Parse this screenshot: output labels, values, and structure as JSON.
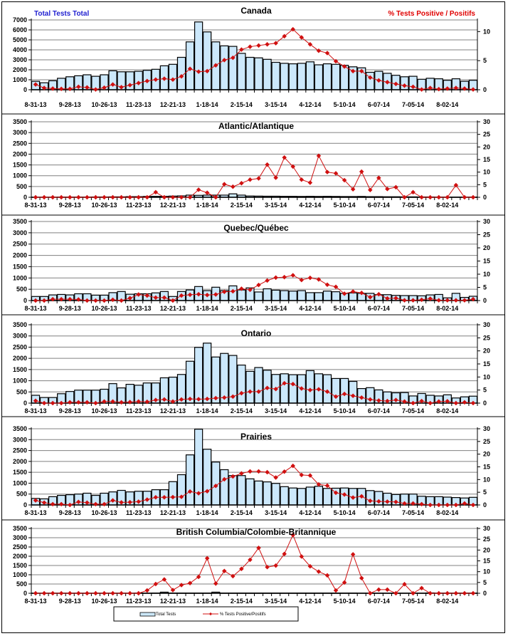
{
  "header": {
    "left_label": "Total Tests Total",
    "right_label": "% Tests Positive / Positifs"
  },
  "legend": {
    "bar_label": "Total Tests",
    "line_label": "% Tests Positive/Positifs",
    "placement": "bottom-center"
  },
  "colors": {
    "bar_fill": "#cce8fb",
    "bar_stroke": "#000000",
    "line": "#d01010",
    "grid": "#808080"
  },
  "chart_data": [
    {
      "type": "bar+line",
      "title": "Canada",
      "x_tick_labels": [
        "8-31-13",
        "9-28-13",
        "10-26-13",
        "11-23-13",
        "12-21-13",
        "1-18-14",
        "2-15-14",
        "3-15-14",
        "4-12-14",
        "5-10-14",
        "6-07-14",
        "7-05-14",
        "8-02-14"
      ],
      "y_left_ticks": [
        "0",
        "1000",
        "2000",
        "3000",
        "4000",
        "5000",
        "6000",
        "7000"
      ],
      "y_left_lim": [
        0,
        7000
      ],
      "y_right_ticks": [
        "0",
        "5",
        "10"
      ],
      "y_right_lim": [
        0,
        12
      ],
      "series": [
        {
          "name": "Total Tests",
          "axis": "left",
          "kind": "bar",
          "values": [
            850,
            700,
            900,
            1150,
            1300,
            1400,
            1500,
            1350,
            1500,
            1900,
            1800,
            1800,
            1850,
            1950,
            2050,
            2400,
            2550,
            3250,
            4800,
            6800,
            5800,
            4800,
            4400,
            4350,
            3650,
            3250,
            3200,
            3050,
            2750,
            2650,
            2600,
            2650,
            2800,
            2500,
            2600,
            2550,
            2450,
            2300,
            2200,
            1750,
            1850,
            1650,
            1450,
            1300,
            1350,
            1050,
            1150,
            1100,
            950,
            1100,
            850,
            950
          ]
        },
        {
          "name": "% Tests Positive/Positifs",
          "axis": "right",
          "kind": "line",
          "values": [
            0.9,
            0.3,
            0.2,
            0.15,
            0.15,
            0.5,
            0.4,
            0.05,
            0.35,
            0.9,
            0.45,
            0.8,
            1.15,
            1.5,
            1.75,
            1.9,
            1.75,
            2.3,
            3.6,
            3.1,
            3.2,
            4.2,
            5.1,
            5.5,
            6.9,
            7.4,
            7.6,
            7.8,
            8.0,
            9.2,
            10.4,
            9.0,
            7.8,
            6.7,
            6.3,
            4.9,
            4.0,
            3.2,
            3.2,
            2.1,
            1.6,
            1.3,
            1.0,
            0.7,
            0.5,
            0.05,
            0.3,
            0.1,
            0.2,
            0.3,
            0.2,
            0.05
          ]
        }
      ]
    },
    {
      "type": "bar+line",
      "title": "Atlantic/Atlantique",
      "x_tick_labels": [
        "8-31-13",
        "9-28-13",
        "10-26-13",
        "11-23-13",
        "12-21-13",
        "1-18-14",
        "2-15-14",
        "3-15-14",
        "4-12-14",
        "5-10-14",
        "6-07-14",
        "7-05-14",
        "8-02-14"
      ],
      "y_left_ticks": [
        "0",
        "500",
        "1000",
        "1500",
        "2000",
        "2500",
        "3000",
        "3500"
      ],
      "y_left_lim": [
        0,
        3500
      ],
      "y_right_ticks": [
        "0",
        "5",
        "10",
        "15",
        "20",
        "25",
        "30"
      ],
      "y_right_lim": [
        0,
        30
      ],
      "series": [
        {
          "name": "Total Tests",
          "axis": "left",
          "kind": "bar",
          "values": [
            5,
            5,
            5,
            10,
            10,
            10,
            10,
            15,
            15,
            20,
            20,
            30,
            30,
            40,
            45,
            45,
            55,
            65,
            100,
            90,
            100,
            100,
            100,
            160,
            100,
            60,
            55,
            50,
            50,
            45,
            45,
            40,
            45,
            40,
            45,
            40,
            35,
            35,
            40,
            30,
            30,
            25,
            25,
            20,
            20,
            15,
            15,
            10,
            10,
            10,
            10,
            10
          ]
        },
        {
          "name": "% Tests Positive/Positifs",
          "axis": "right",
          "kind": "line",
          "values": [
            0,
            0,
            0,
            0,
            0,
            0,
            0,
            0,
            0,
            0,
            0,
            0,
            0,
            0,
            2,
            0,
            0,
            0,
            0,
            3,
            1.8,
            0,
            5.2,
            4.2,
            5.6,
            7,
            7.5,
            13,
            7.8,
            15.8,
            12.2,
            7,
            5.8,
            16.5,
            10,
            9.5,
            6.8,
            3.2,
            10.2,
            2.9,
            7.7,
            3.3,
            4,
            0,
            2,
            0,
            0,
            0,
            0,
            4.8,
            0,
            0
          ]
        }
      ]
    },
    {
      "type": "bar+line",
      "title": "Quebec/Québec",
      "x_tick_labels": [
        "8-31-13",
        "9-28-13",
        "10-26-13",
        "11-23-13",
        "12-21-13",
        "1-18-14",
        "2-15-14",
        "3-15-14",
        "4-12-14",
        "5-10-14",
        "6-07-14",
        "7-05-14",
        "8-02-14"
      ],
      "y_left_ticks": [
        "0",
        "500",
        "1000",
        "1500",
        "2000",
        "2500",
        "3000",
        "3500"
      ],
      "y_left_lim": [
        0,
        3500
      ],
      "y_right_ticks": [
        "0",
        "5",
        "10",
        "15",
        "20",
        "25",
        "30"
      ],
      "y_right_lim": [
        0,
        30
      ],
      "series": [
        {
          "name": "Total Tests",
          "axis": "left",
          "kind": "bar",
          "values": [
            180,
            180,
            250,
            270,
            250,
            300,
            300,
            240,
            240,
            350,
            400,
            280,
            300,
            300,
            340,
            400,
            180,
            400,
            470,
            620,
            440,
            590,
            440,
            650,
            470,
            560,
            380,
            520,
            460,
            440,
            420,
            440,
            350,
            350,
            420,
            390,
            320,
            340,
            320,
            320,
            260,
            260,
            230,
            220,
            220,
            210,
            250,
            270,
            120,
            320,
            140,
            190
          ]
        },
        {
          "name": "% Tests Positive/Positifs",
          "axis": "right",
          "kind": "line",
          "values": [
            0,
            0,
            0.5,
            0.5,
            0.5,
            0.4,
            0,
            0,
            0,
            0.3,
            0,
            0.9,
            2.3,
            1.9,
            1.1,
            1.1,
            0,
            1.9,
            2.2,
            2.4,
            2.1,
            2.3,
            3.3,
            3.5,
            4.5,
            4.1,
            5.9,
            7.6,
            8.7,
            8.9,
            9.6,
            7.8,
            8.6,
            8.0,
            6.0,
            5.2,
            2.6,
            3.4,
            2.9,
            1.3,
            2.4,
            0.8,
            0.9,
            0.1,
            0.1,
            0.3,
            0.7,
            0.1,
            0.1,
            0.1,
            0.1,
            0.5
          ]
        }
      ]
    },
    {
      "type": "bar+line",
      "title": "Ontario",
      "x_tick_labels": [
        "8-31-13",
        "9-28-13",
        "10-26-13",
        "11-23-13",
        "12-21-13",
        "1-18-14",
        "2-15-14",
        "3-15-14",
        "4-12-14",
        "5-10-14",
        "6-07-14",
        "7-05-14",
        "8-02-14"
      ],
      "y_left_ticks": [
        "0",
        "500",
        "1000",
        "1500",
        "2000",
        "2500",
        "3000",
        "3500"
      ],
      "y_left_lim": [
        0,
        3500
      ],
      "y_right_ticks": [
        "0",
        "5",
        "10",
        "15",
        "20",
        "25",
        "30"
      ],
      "y_right_lim": [
        0,
        30
      ],
      "series": [
        {
          "name": "Total Tests",
          "axis": "left",
          "kind": "bar",
          "values": [
            350,
            250,
            250,
            420,
            520,
            580,
            580,
            580,
            620,
            870,
            680,
            840,
            800,
            900,
            900,
            1130,
            1160,
            1280,
            1870,
            2490,
            2680,
            2060,
            2220,
            2130,
            1700,
            1420,
            1590,
            1470,
            1280,
            1310,
            1270,
            1270,
            1450,
            1310,
            1270,
            1100,
            1100,
            970,
            650,
            690,
            590,
            500,
            460,
            470,
            320,
            430,
            350,
            320,
            370,
            230,
            280,
            310
          ]
        },
        {
          "name": "% Tests Positive/Positifs",
          "axis": "right",
          "kind": "line",
          "values": [
            0.9,
            0,
            0,
            0,
            0.3,
            0.3,
            0.3,
            0,
            0.6,
            0.6,
            0.3,
            0.4,
            0.6,
            0.5,
            1.2,
            1.4,
            0.6,
            1.4,
            1.6,
            1.5,
            1.6,
            1.9,
            2.1,
            2.5,
            3.8,
            4.4,
            4.4,
            5.8,
            5.4,
            7.6,
            7.3,
            5.6,
            5.0,
            5.3,
            4.4,
            2.5,
            3.5,
            2.8,
            2.1,
            1.4,
            1.0,
            0.8,
            1.2,
            0.6,
            0,
            0.8,
            0,
            0.6,
            0.7,
            0,
            0.3,
            0
          ]
        }
      ]
    },
    {
      "type": "bar+line",
      "title": "Prairies",
      "x_tick_labels": [
        "8-31-13",
        "9-28-13",
        "10-26-13",
        "11-23-13",
        "12-21-13",
        "1-18-14",
        "2-15-14",
        "3-15-14",
        "4-12-14",
        "5-10-14",
        "6-07-14",
        "7-05-14",
        "8-02-14"
      ],
      "y_left_ticks": [
        "0",
        "500",
        "1000",
        "1500",
        "2000",
        "2500",
        "3000",
        "3500"
      ],
      "y_left_lim": [
        0,
        3500
      ],
      "y_right_ticks": [
        "0",
        "5",
        "10",
        "15",
        "20",
        "25",
        "30"
      ],
      "y_right_lim": [
        0,
        30
      ],
      "series": [
        {
          "name": "Total Tests",
          "axis": "left",
          "kind": "bar",
          "values": [
            300,
            280,
            380,
            440,
            470,
            500,
            540,
            440,
            540,
            600,
            670,
            600,
            630,
            630,
            700,
            700,
            1070,
            1390,
            2300,
            3480,
            2560,
            1970,
            1620,
            1350,
            1350,
            1200,
            1100,
            1060,
            990,
            840,
            780,
            760,
            820,
            860,
            760,
            770,
            780,
            760,
            760,
            660,
            620,
            540,
            480,
            500,
            500,
            400,
            380,
            380,
            360,
            340,
            320,
            350
          ]
        },
        {
          "name": "% Tests Positive/Positifs",
          "axis": "right",
          "kind": "line",
          "values": [
            1.8,
            0.9,
            0.3,
            0.3,
            0,
            1.2,
            0.9,
            0.3,
            0.3,
            1.8,
            1.0,
            1.1,
            1.3,
            2.1,
            3.0,
            3.0,
            3.1,
            3.2,
            5.3,
            4.6,
            5.4,
            7.5,
            10.1,
            11.2,
            12.4,
            13.2,
            13.2,
            12.9,
            10.8,
            13.1,
            15.4,
            11.8,
            11.6,
            8.1,
            7.6,
            4.8,
            4.1,
            2.9,
            3.4,
            1.6,
            1.4,
            1.3,
            1.2,
            0.6,
            0.6,
            0.3,
            0,
            0,
            0,
            0,
            0.6,
            0
          ]
        }
      ]
    },
    {
      "type": "bar+line",
      "title": "British Columbia/Colombie-Britannique",
      "x_tick_labels": [
        "8-31-13",
        "9-28-13",
        "10-26-13",
        "11-23-13",
        "12-21-13",
        "1-18-14",
        "2-15-14",
        "3-15-14",
        "4-12-14",
        "5-10-14",
        "6-07-14",
        "7-05-14",
        "8-02-14"
      ],
      "y_left_ticks": [
        "0",
        "500",
        "1000",
        "1500",
        "2000",
        "2500",
        "3000",
        "3500"
      ],
      "y_left_lim": [
        0,
        3500
      ],
      "y_right_ticks": [
        "0",
        "5",
        "10",
        "15",
        "20",
        "25",
        "30"
      ],
      "y_right_lim": [
        0,
        30
      ],
      "series": [
        {
          "name": "Total Tests",
          "axis": "left",
          "kind": "bar",
          "values": [
            5,
            5,
            5,
            5,
            5,
            5,
            5,
            5,
            5,
            5,
            5,
            5,
            10,
            10,
            15,
            60,
            15,
            15,
            15,
            15,
            15,
            60,
            15,
            15,
            15,
            15,
            15,
            15,
            15,
            15,
            15,
            15,
            15,
            15,
            15,
            15,
            15,
            15,
            10,
            10,
            10,
            10,
            10,
            10,
            10,
            10,
            20,
            10,
            10,
            10,
            10,
            10
          ]
        },
        {
          "name": "% Tests Positive/Positifs",
          "axis": "right",
          "kind": "line",
          "values": [
            0,
            0,
            0,
            0,
            0,
            0,
            0,
            0,
            0,
            0,
            0,
            0,
            0,
            1.3,
            4.3,
            6.4,
            1.5,
            3.8,
            4.7,
            7.6,
            16.2,
            4.5,
            10.3,
            7.9,
            11.3,
            15.5,
            21,
            12.1,
            12.8,
            18.2,
            27,
            17,
            12.5,
            10,
            8.3,
            1.3,
            5,
            18,
            7,
            0,
            1.7,
            1.7,
            0,
            4.2,
            0,
            2.4,
            0,
            0,
            0,
            0,
            0,
            0
          ]
        }
      ]
    }
  ]
}
